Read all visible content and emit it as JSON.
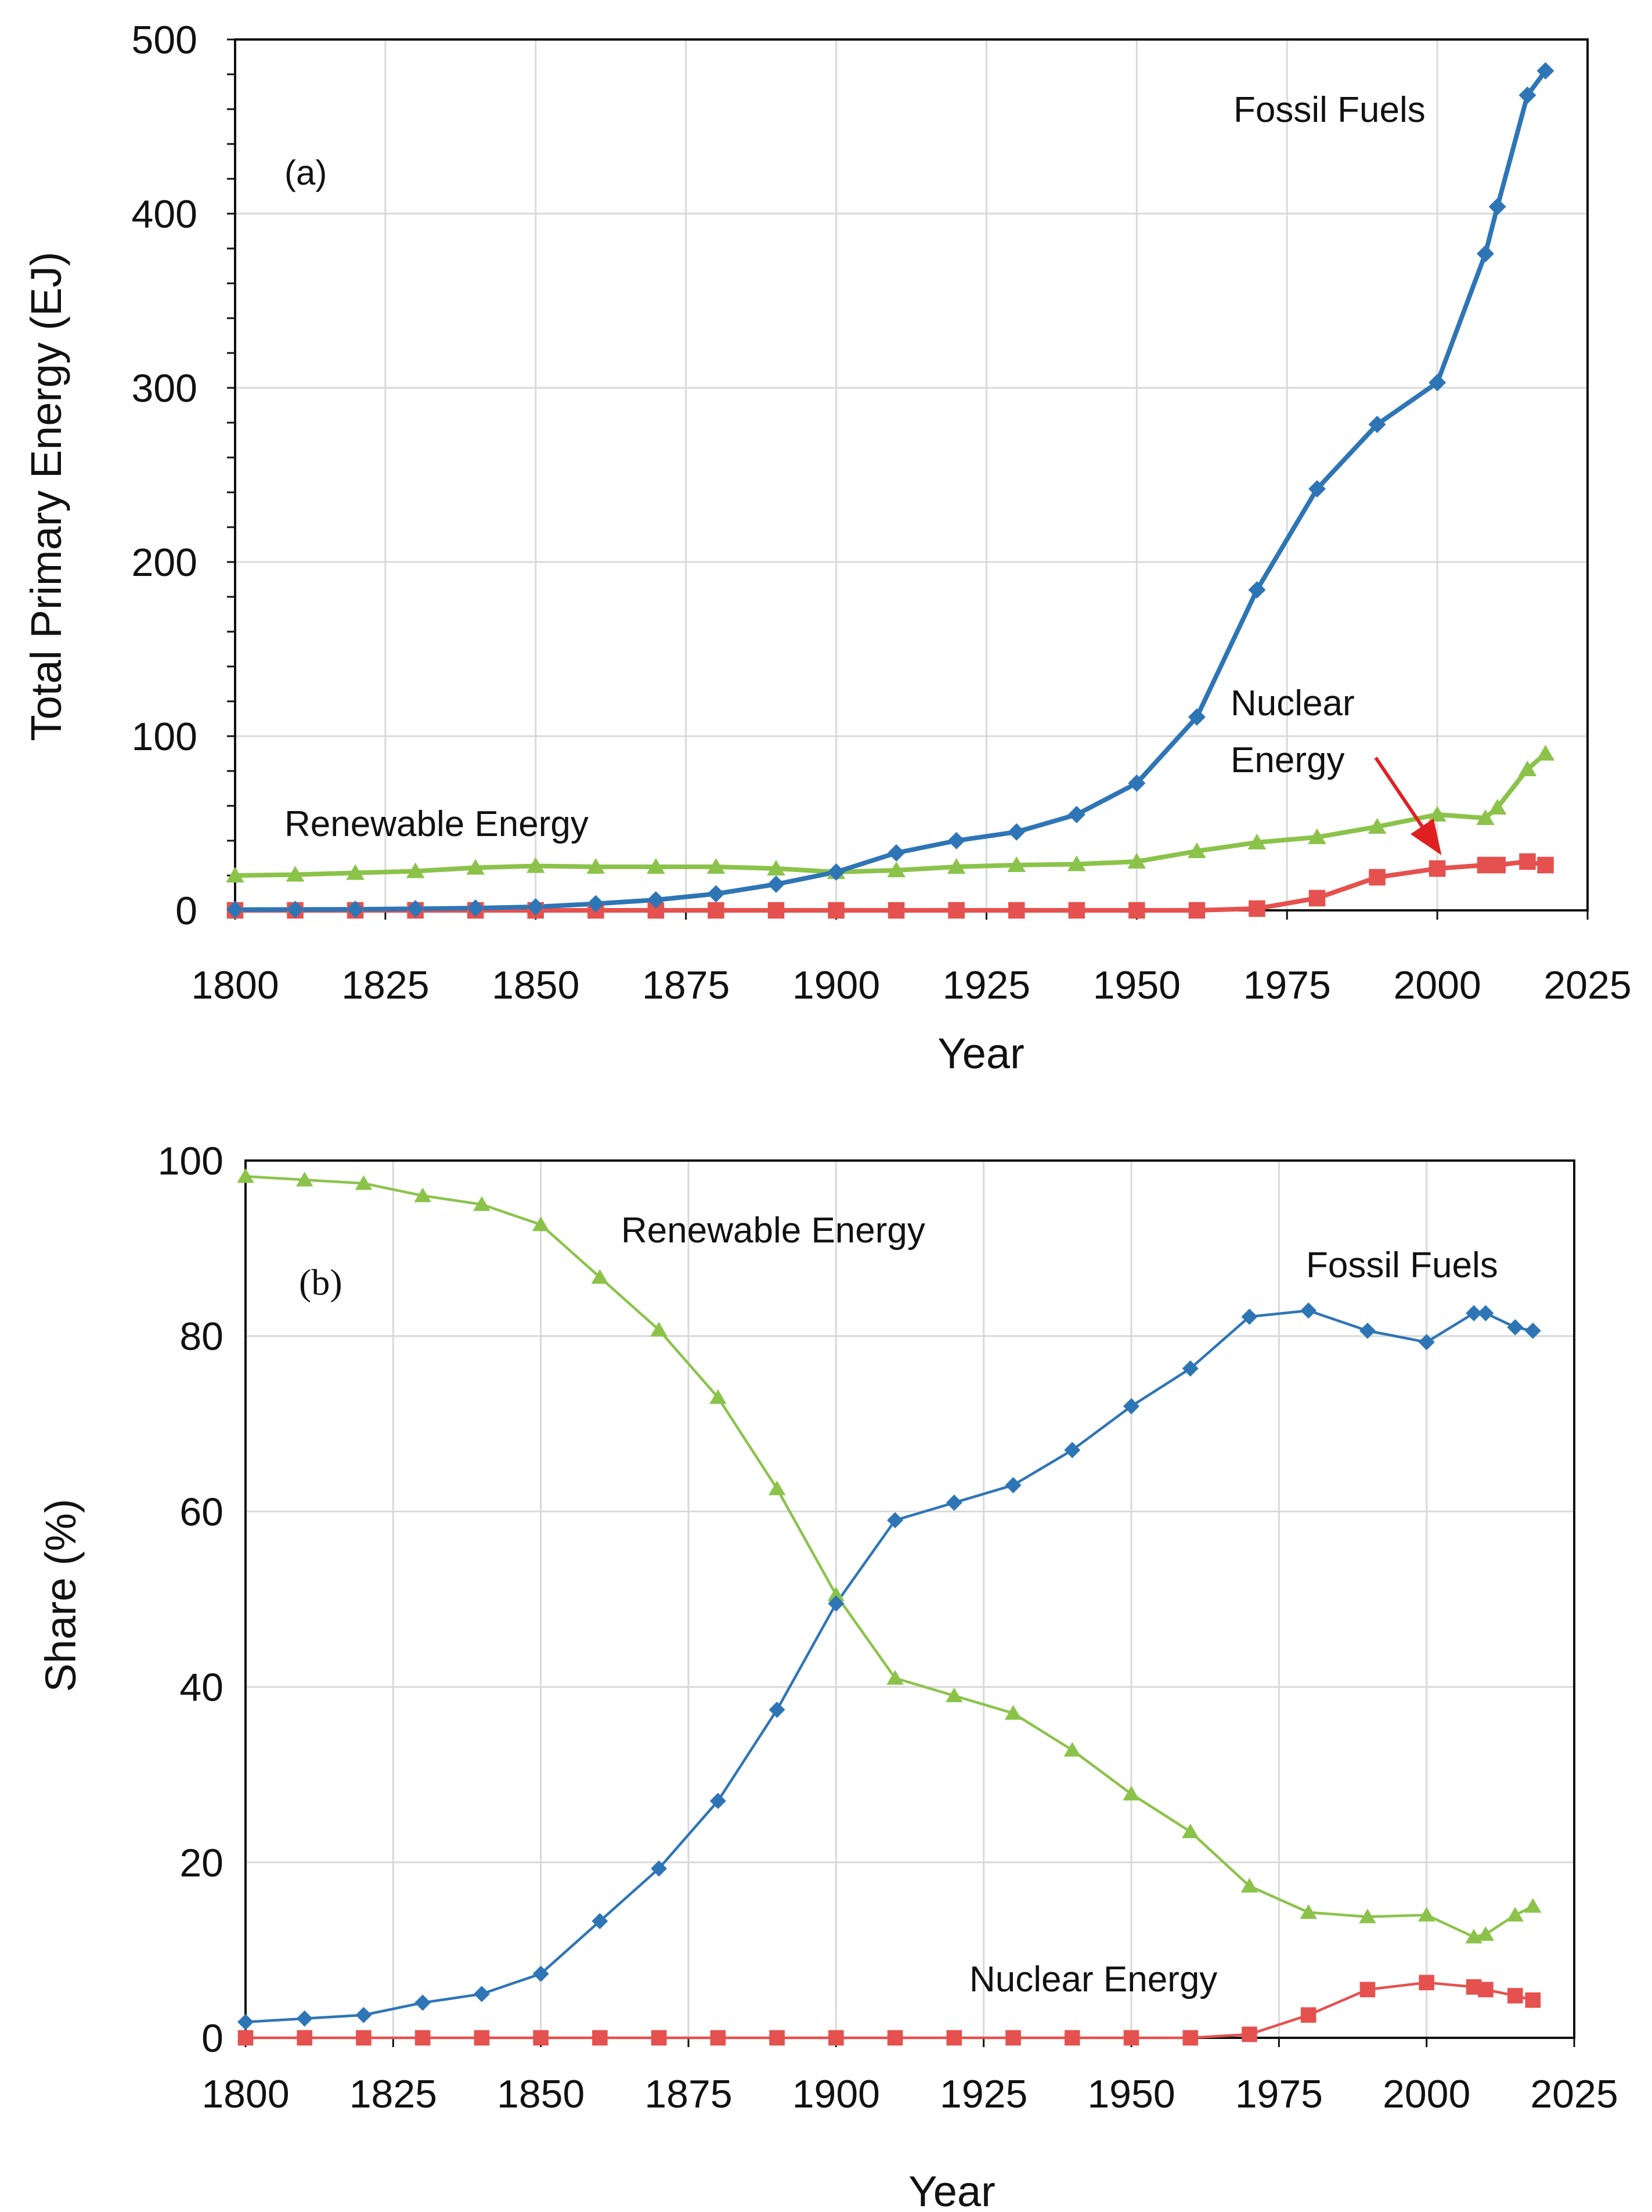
{
  "chart_data": [
    {
      "panel": "a",
      "type": "line",
      "panel_label": "(a)",
      "xlabel": "Year",
      "ylabel": "Total Primary Energy (EJ)",
      "xlim": [
        1800,
        2025
      ],
      "ylim": [
        0,
        500
      ],
      "x_ticks": [
        1800,
        1825,
        1850,
        1875,
        1900,
        1925,
        1950,
        1975,
        2000,
        2025
      ],
      "y_ticks": [
        0,
        100,
        200,
        300,
        400,
        500
      ],
      "x": [
        1800,
        1810,
        1820,
        1830,
        1840,
        1850,
        1860,
        1870,
        1880,
        1890,
        1900,
        1910,
        1920,
        1930,
        1940,
        1950,
        1960,
        1970,
        1980,
        1990,
        2000,
        2008,
        2010,
        2015,
        2018
      ],
      "series": [
        {
          "name": "Fossil Fuels",
          "color": "#2E75B6",
          "marker": "diamond",
          "values": [
            0.4,
            0.5,
            0.6,
            0.9,
            1.3,
            2.0,
            3.8,
            6.0,
            9.5,
            15,
            22,
            33,
            40,
            45,
            55,
            73,
            111,
            184,
            242,
            279,
            303,
            377,
            404,
            468,
            482
          ]
        },
        {
          "name": "Renewable Energy",
          "color": "#8BC34A",
          "marker": "triangle",
          "values": [
            20,
            20.5,
            21.5,
            22.5,
            24.5,
            25.5,
            25,
            25,
            25,
            24,
            22,
            23,
            25,
            26,
            26.5,
            28,
            34,
            39,
            42,
            48,
            55,
            53,
            59,
            81,
            90
          ]
        },
        {
          "name": "Nuclear Energy",
          "color": "#E5514E",
          "marker": "square",
          "values": [
            0,
            0,
            0,
            0,
            0,
            0,
            0,
            0,
            0,
            0,
            0,
            0,
            0,
            0,
            0,
            0,
            0,
            1,
            7,
            19,
            24,
            26,
            26,
            28,
            26
          ]
        }
      ],
      "annotations": {
        "fossil": "Fossil Fuels",
        "renewable": "Renewable Energy",
        "nuclear_line1": "Nuclear",
        "nuclear_line2": "Energy"
      },
      "grid": true
    },
    {
      "panel": "b",
      "type": "line",
      "panel_label": "(b)",
      "xlabel": "Year",
      "ylabel": "Share (%)",
      "xlim": [
        1800,
        2025
      ],
      "ylim": [
        0,
        100
      ],
      "x_ticks": [
        1800,
        1825,
        1850,
        1875,
        1900,
        1925,
        1950,
        1975,
        2000,
        2025
      ],
      "y_ticks": [
        0,
        20,
        40,
        60,
        80,
        100
      ],
      "x": [
        1800,
        1810,
        1820,
        1830,
        1840,
        1850,
        1860,
        1870,
        1880,
        1890,
        1900,
        1910,
        1920,
        1930,
        1940,
        1950,
        1960,
        1970,
        1980,
        1990,
        2000,
        2008,
        2010,
        2015,
        2018
      ],
      "series": [
        {
          "name": "Fossil Fuels",
          "color": "#2E75B6",
          "marker": "diamond",
          "values": [
            1.8,
            2.2,
            2.6,
            4,
            5,
            7.3,
            13.3,
            19.3,
            27,
            37.4,
            49.5,
            59,
            61,
            63,
            67,
            72,
            76.3,
            82.2,
            82.9,
            80.6,
            79.3,
            82.6,
            82.6,
            81,
            80.6
          ]
        },
        {
          "name": "Renewable Energy",
          "color": "#8BC34A",
          "marker": "triangle",
          "values": [
            98.2,
            97.8,
            97.4,
            96,
            95,
            92.7,
            86.7,
            80.7,
            73,
            62.6,
            50.5,
            41,
            39,
            37,
            32.8,
            27.8,
            23.5,
            17.3,
            14.3,
            13.8,
            14,
            11.5,
            11.8,
            14,
            15
          ]
        },
        {
          "name": "Nuclear Energy",
          "color": "#E5514E",
          "marker": "square",
          "values": [
            0,
            0,
            0,
            0,
            0,
            0,
            0,
            0,
            0,
            0,
            0,
            0,
            0,
            0,
            0,
            0,
            0,
            0.4,
            2.6,
            5.5,
            6.3,
            5.8,
            5.5,
            4.8,
            4.3
          ]
        }
      ],
      "annotations": {
        "fossil": "Fossil Fuels",
        "renewable": "Renewable Energy",
        "nuclear": "Nuclear Energy"
      },
      "grid": true
    }
  ]
}
